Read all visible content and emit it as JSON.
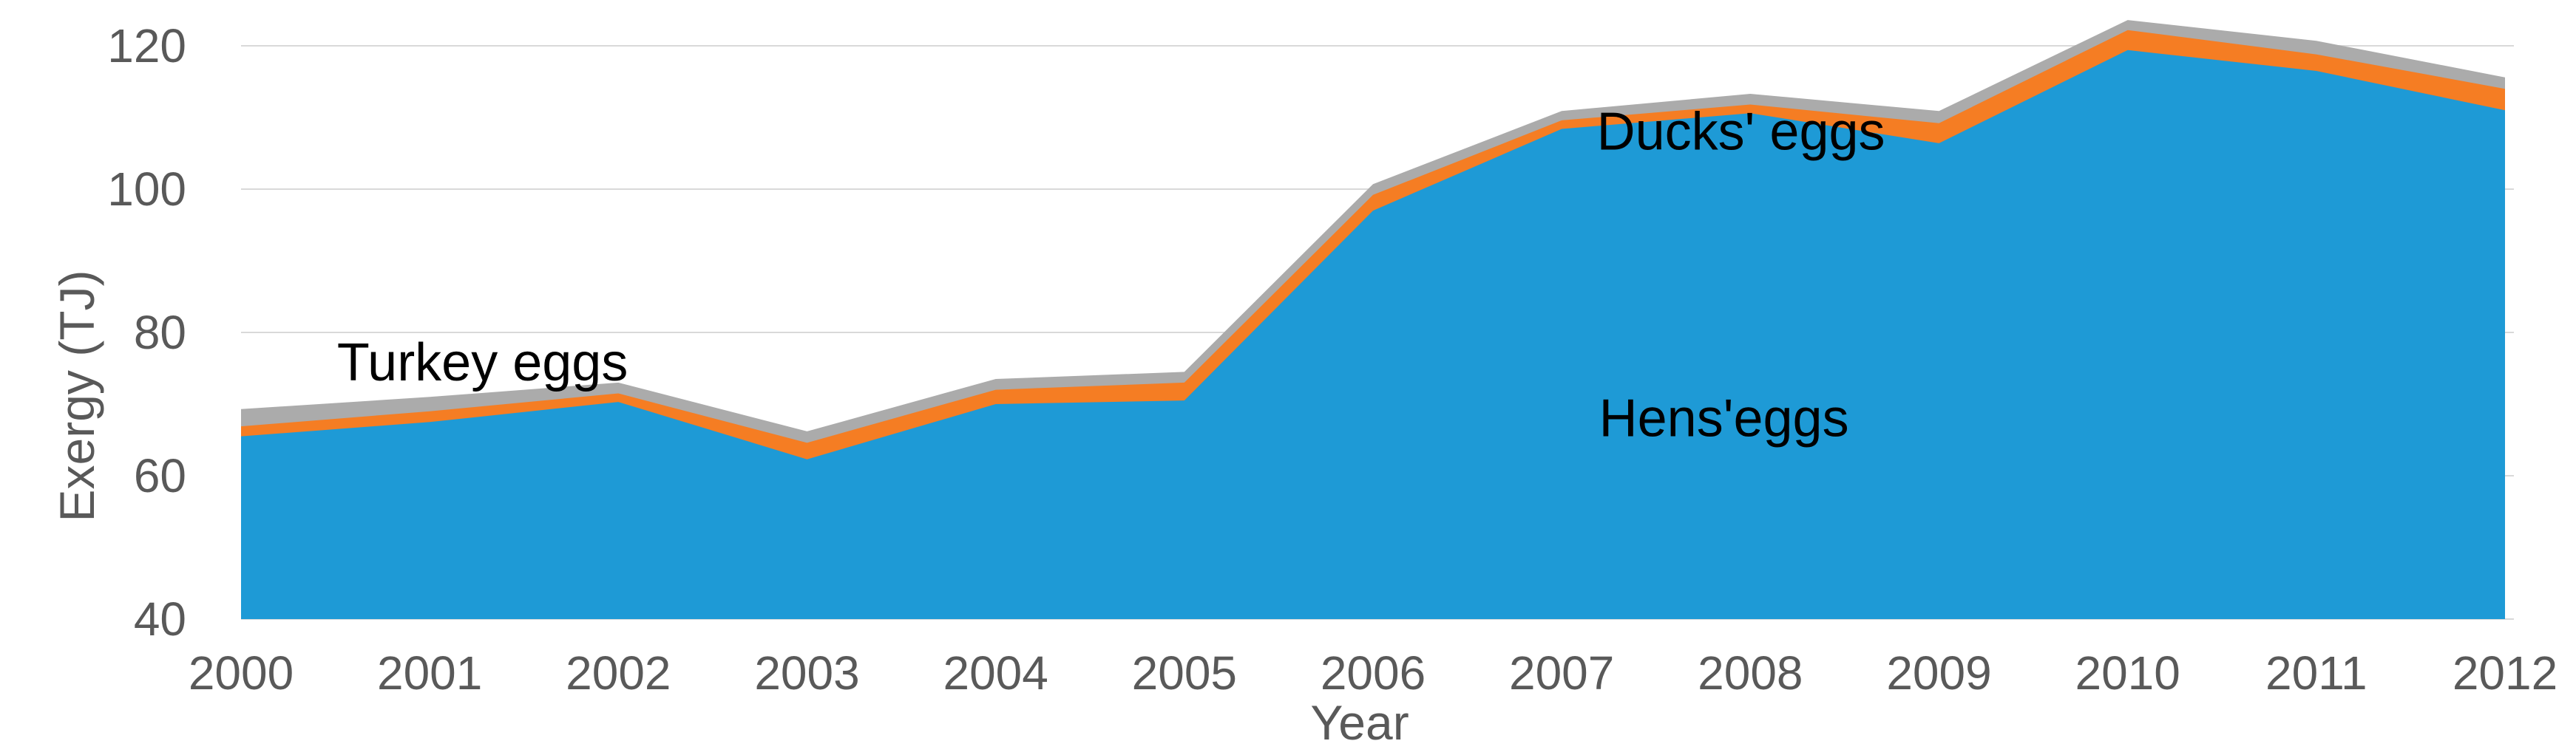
{
  "figure": {
    "background": "#FFFFFF"
  },
  "chart_data": {
    "type": "area",
    "stacked": true,
    "title": "",
    "xlabel": "Year",
    "ylabel": "Exergy (TJ)",
    "ylim": [
      40,
      120
    ],
    "ytick_step": 20,
    "grid": "horizontal",
    "legend": "none (direct series labels)",
    "categories": [
      2000,
      2001,
      2002,
      2003,
      2004,
      2005,
      2006,
      2007,
      2008,
      2009,
      2010,
      2011,
      2012
    ],
    "series": [
      {
        "name": "Hens'eggs",
        "color": "#1E9AD6",
        "values": [
          65.5,
          67.5,
          70.3,
          62.3,
          70.0,
          70.5,
          97.0,
          108.4,
          110.6,
          106.4,
          119.4,
          116.5,
          111.0
        ]
      },
      {
        "name": "Ducks' eggs",
        "color": "#F57D23",
        "values": [
          1.4,
          1.5,
          1.2,
          2.3,
          2.0,
          2.5,
          2.2,
          1.2,
          1.2,
          2.8,
          2.8,
          2.3,
          3.0
        ]
      },
      {
        "name": "Turkey eggs",
        "color": "#ABABAB",
        "values": [
          2.4,
          2.0,
          1.5,
          1.6,
          1.5,
          1.5,
          1.5,
          1.3,
          1.5,
          1.7,
          1.4,
          1.9,
          1.6
        ]
      }
    ],
    "stacked_totals": [
      69.3,
      71.0,
      73.0,
      66.2,
      73.5,
      74.5,
      100.7,
      110.9,
      113.3,
      110.9,
      123.6,
      120.7,
      115.6
    ],
    "annotations": [
      {
        "text": "Turkey eggs",
        "year": 2001.28,
        "value": 75.9
      },
      {
        "text": "Ducks' eggs",
        "year": 2007.95,
        "value": 108.1
      },
      {
        "text": "Hens'eggs",
        "year": 2007.86,
        "value": 68.1
      }
    ],
    "ytick_labels": [
      "40",
      "60",
      "80",
      "100",
      "120"
    ],
    "axis_text_color": "#595959",
    "grid_color": "#D9D9D9",
    "annotation_color": "#000000"
  }
}
